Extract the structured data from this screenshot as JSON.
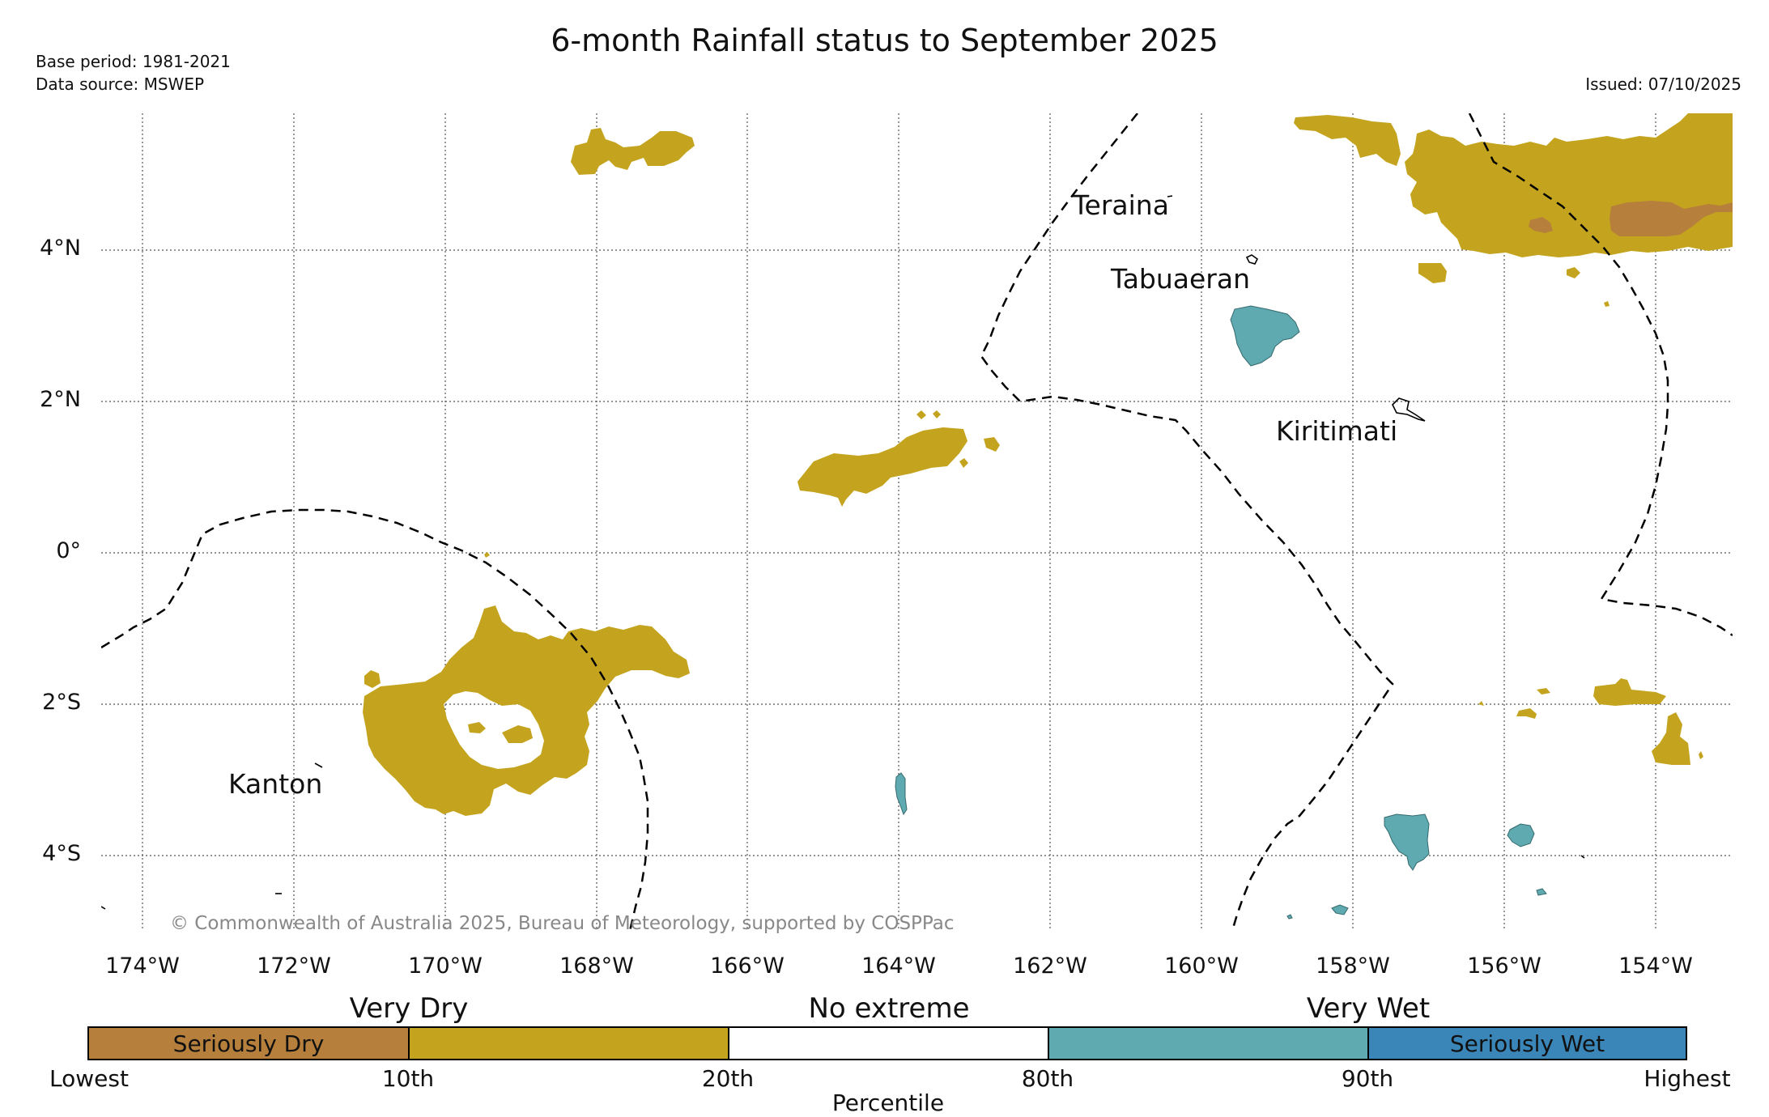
{
  "title": "6-month Rainfall status to September 2025",
  "base_period": "Base period: 1981-2021",
  "data_source": "Data source: MSWEP",
  "issued": "Issued: 07/10/2025",
  "copyright": "© Commonwealth of Australia 2025, Bureau of Meteorology, supported by COSPPac",
  "axis": {
    "lat_labels": [
      "4°N",
      "2°N",
      "0°",
      "2°S",
      "4°S"
    ],
    "lon_labels": [
      "174°W",
      "172°W",
      "170°W",
      "168°W",
      "166°W",
      "164°W",
      "162°W",
      "160°W",
      "158°W",
      "156°W",
      "154°W"
    ]
  },
  "places": {
    "teraina": "Teraina",
    "tabuaeran": "Tabuaeran",
    "kiritimati": "Kiritimati",
    "kanton": "Kanton"
  },
  "legend": {
    "cat_dry": "Very Dry",
    "cat_none": "No extreme",
    "cat_wet": "Very Wet",
    "seg_seriously_dry": "Seriously Dry",
    "seg_seriously_wet": "Seriously Wet",
    "ticks": [
      "Lowest",
      "10th",
      "20th",
      "80th",
      "90th",
      "Highest"
    ],
    "xlabel": "Percentile"
  },
  "colors": {
    "seriously_dry": "#b77f3c",
    "very_dry": "#c4a41e",
    "no_extreme": "#ffffff",
    "very_wet": "#5eaab0",
    "seriously_wet": "#3a86b8"
  }
}
